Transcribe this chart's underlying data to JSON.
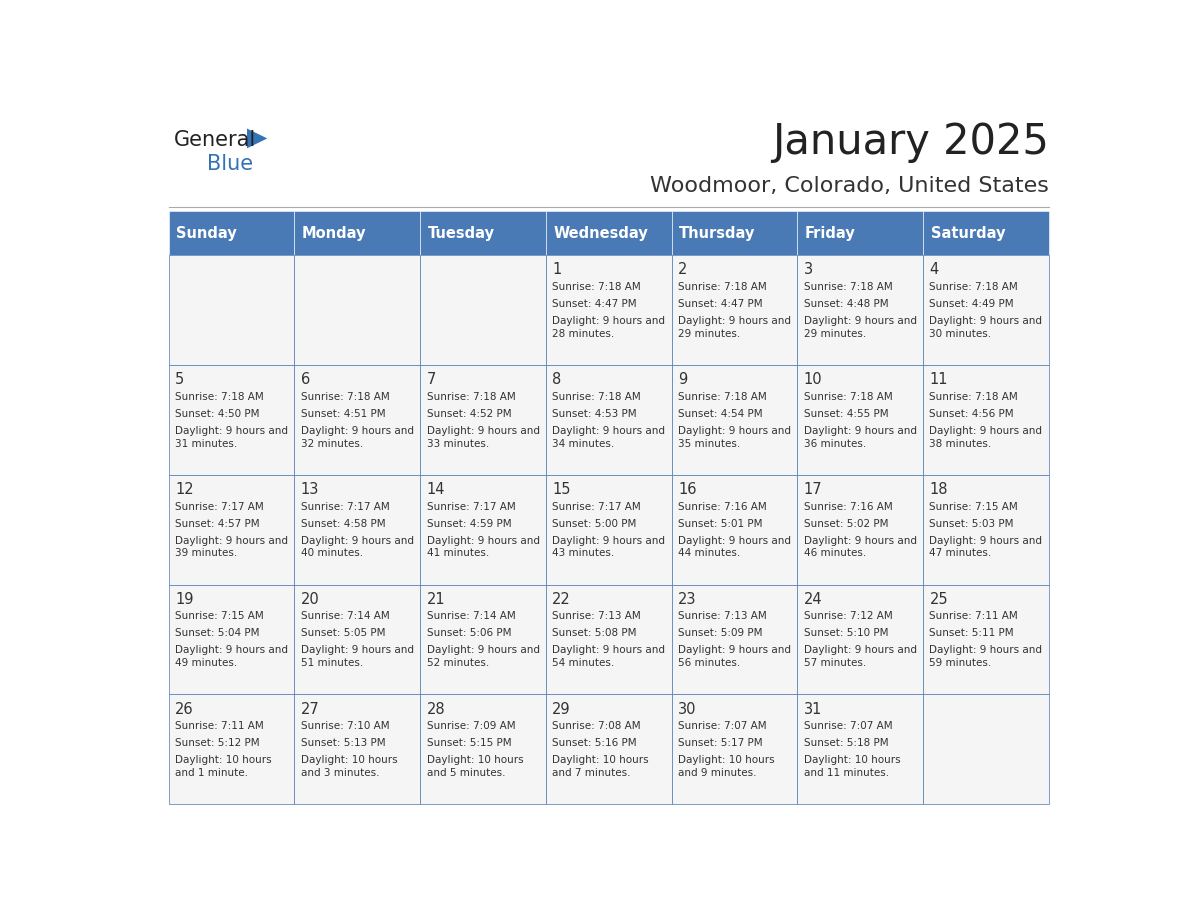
{
  "title": "January 2025",
  "subtitle": "Woodmoor, Colorado, United States",
  "days_of_week": [
    "Sunday",
    "Monday",
    "Tuesday",
    "Wednesday",
    "Thursday",
    "Friday",
    "Saturday"
  ],
  "header_bg": "#4a7ab5",
  "header_text": "#ffffff",
  "cell_bg": "#f5f5f5",
  "cell_text": "#333333",
  "border_color": "#4a7ab5",
  "title_color": "#222222",
  "subtitle_color": "#333333",
  "logo_black": "#222222",
  "logo_blue": "#3374b5",
  "calendar_data": [
    [
      {
        "day": null,
        "sunrise": null,
        "sunset": null,
        "daylight": null
      },
      {
        "day": null,
        "sunrise": null,
        "sunset": null,
        "daylight": null
      },
      {
        "day": null,
        "sunrise": null,
        "sunset": null,
        "daylight": null
      },
      {
        "day": 1,
        "sunrise": "7:18 AM",
        "sunset": "4:47 PM",
        "daylight": "9 hours and 28 minutes."
      },
      {
        "day": 2,
        "sunrise": "7:18 AM",
        "sunset": "4:47 PM",
        "daylight": "9 hours and 29 minutes."
      },
      {
        "day": 3,
        "sunrise": "7:18 AM",
        "sunset": "4:48 PM",
        "daylight": "9 hours and 29 minutes."
      },
      {
        "day": 4,
        "sunrise": "7:18 AM",
        "sunset": "4:49 PM",
        "daylight": "9 hours and 30 minutes."
      }
    ],
    [
      {
        "day": 5,
        "sunrise": "7:18 AM",
        "sunset": "4:50 PM",
        "daylight": "9 hours and 31 minutes."
      },
      {
        "day": 6,
        "sunrise": "7:18 AM",
        "sunset": "4:51 PM",
        "daylight": "9 hours and 32 minutes."
      },
      {
        "day": 7,
        "sunrise": "7:18 AM",
        "sunset": "4:52 PM",
        "daylight": "9 hours and 33 minutes."
      },
      {
        "day": 8,
        "sunrise": "7:18 AM",
        "sunset": "4:53 PM",
        "daylight": "9 hours and 34 minutes."
      },
      {
        "day": 9,
        "sunrise": "7:18 AM",
        "sunset": "4:54 PM",
        "daylight": "9 hours and 35 minutes."
      },
      {
        "day": 10,
        "sunrise": "7:18 AM",
        "sunset": "4:55 PM",
        "daylight": "9 hours and 36 minutes."
      },
      {
        "day": 11,
        "sunrise": "7:18 AM",
        "sunset": "4:56 PM",
        "daylight": "9 hours and 38 minutes."
      }
    ],
    [
      {
        "day": 12,
        "sunrise": "7:17 AM",
        "sunset": "4:57 PM",
        "daylight": "9 hours and 39 minutes."
      },
      {
        "day": 13,
        "sunrise": "7:17 AM",
        "sunset": "4:58 PM",
        "daylight": "9 hours and 40 minutes."
      },
      {
        "day": 14,
        "sunrise": "7:17 AM",
        "sunset": "4:59 PM",
        "daylight": "9 hours and 41 minutes."
      },
      {
        "day": 15,
        "sunrise": "7:17 AM",
        "sunset": "5:00 PM",
        "daylight": "9 hours and 43 minutes."
      },
      {
        "day": 16,
        "sunrise": "7:16 AM",
        "sunset": "5:01 PM",
        "daylight": "9 hours and 44 minutes."
      },
      {
        "day": 17,
        "sunrise": "7:16 AM",
        "sunset": "5:02 PM",
        "daylight": "9 hours and 46 minutes."
      },
      {
        "day": 18,
        "sunrise": "7:15 AM",
        "sunset": "5:03 PM",
        "daylight": "9 hours and 47 minutes."
      }
    ],
    [
      {
        "day": 19,
        "sunrise": "7:15 AM",
        "sunset": "5:04 PM",
        "daylight": "9 hours and 49 minutes."
      },
      {
        "day": 20,
        "sunrise": "7:14 AM",
        "sunset": "5:05 PM",
        "daylight": "9 hours and 51 minutes."
      },
      {
        "day": 21,
        "sunrise": "7:14 AM",
        "sunset": "5:06 PM",
        "daylight": "9 hours and 52 minutes."
      },
      {
        "day": 22,
        "sunrise": "7:13 AM",
        "sunset": "5:08 PM",
        "daylight": "9 hours and 54 minutes."
      },
      {
        "day": 23,
        "sunrise": "7:13 AM",
        "sunset": "5:09 PM",
        "daylight": "9 hours and 56 minutes."
      },
      {
        "day": 24,
        "sunrise": "7:12 AM",
        "sunset": "5:10 PM",
        "daylight": "9 hours and 57 minutes."
      },
      {
        "day": 25,
        "sunrise": "7:11 AM",
        "sunset": "5:11 PM",
        "daylight": "9 hours and 59 minutes."
      }
    ],
    [
      {
        "day": 26,
        "sunrise": "7:11 AM",
        "sunset": "5:12 PM",
        "daylight": "10 hours and 1 minute."
      },
      {
        "day": 27,
        "sunrise": "7:10 AM",
        "sunset": "5:13 PM",
        "daylight": "10 hours and 3 minutes."
      },
      {
        "day": 28,
        "sunrise": "7:09 AM",
        "sunset": "5:15 PM",
        "daylight": "10 hours and 5 minutes."
      },
      {
        "day": 29,
        "sunrise": "7:08 AM",
        "sunset": "5:16 PM",
        "daylight": "10 hours and 7 minutes."
      },
      {
        "day": 30,
        "sunrise": "7:07 AM",
        "sunset": "5:17 PM",
        "daylight": "10 hours and 9 minutes."
      },
      {
        "day": 31,
        "sunrise": "7:07 AM",
        "sunset": "5:18 PM",
        "daylight": "10 hours and 11 minutes."
      },
      {
        "day": null,
        "sunrise": null,
        "sunset": null,
        "daylight": null
      }
    ]
  ]
}
